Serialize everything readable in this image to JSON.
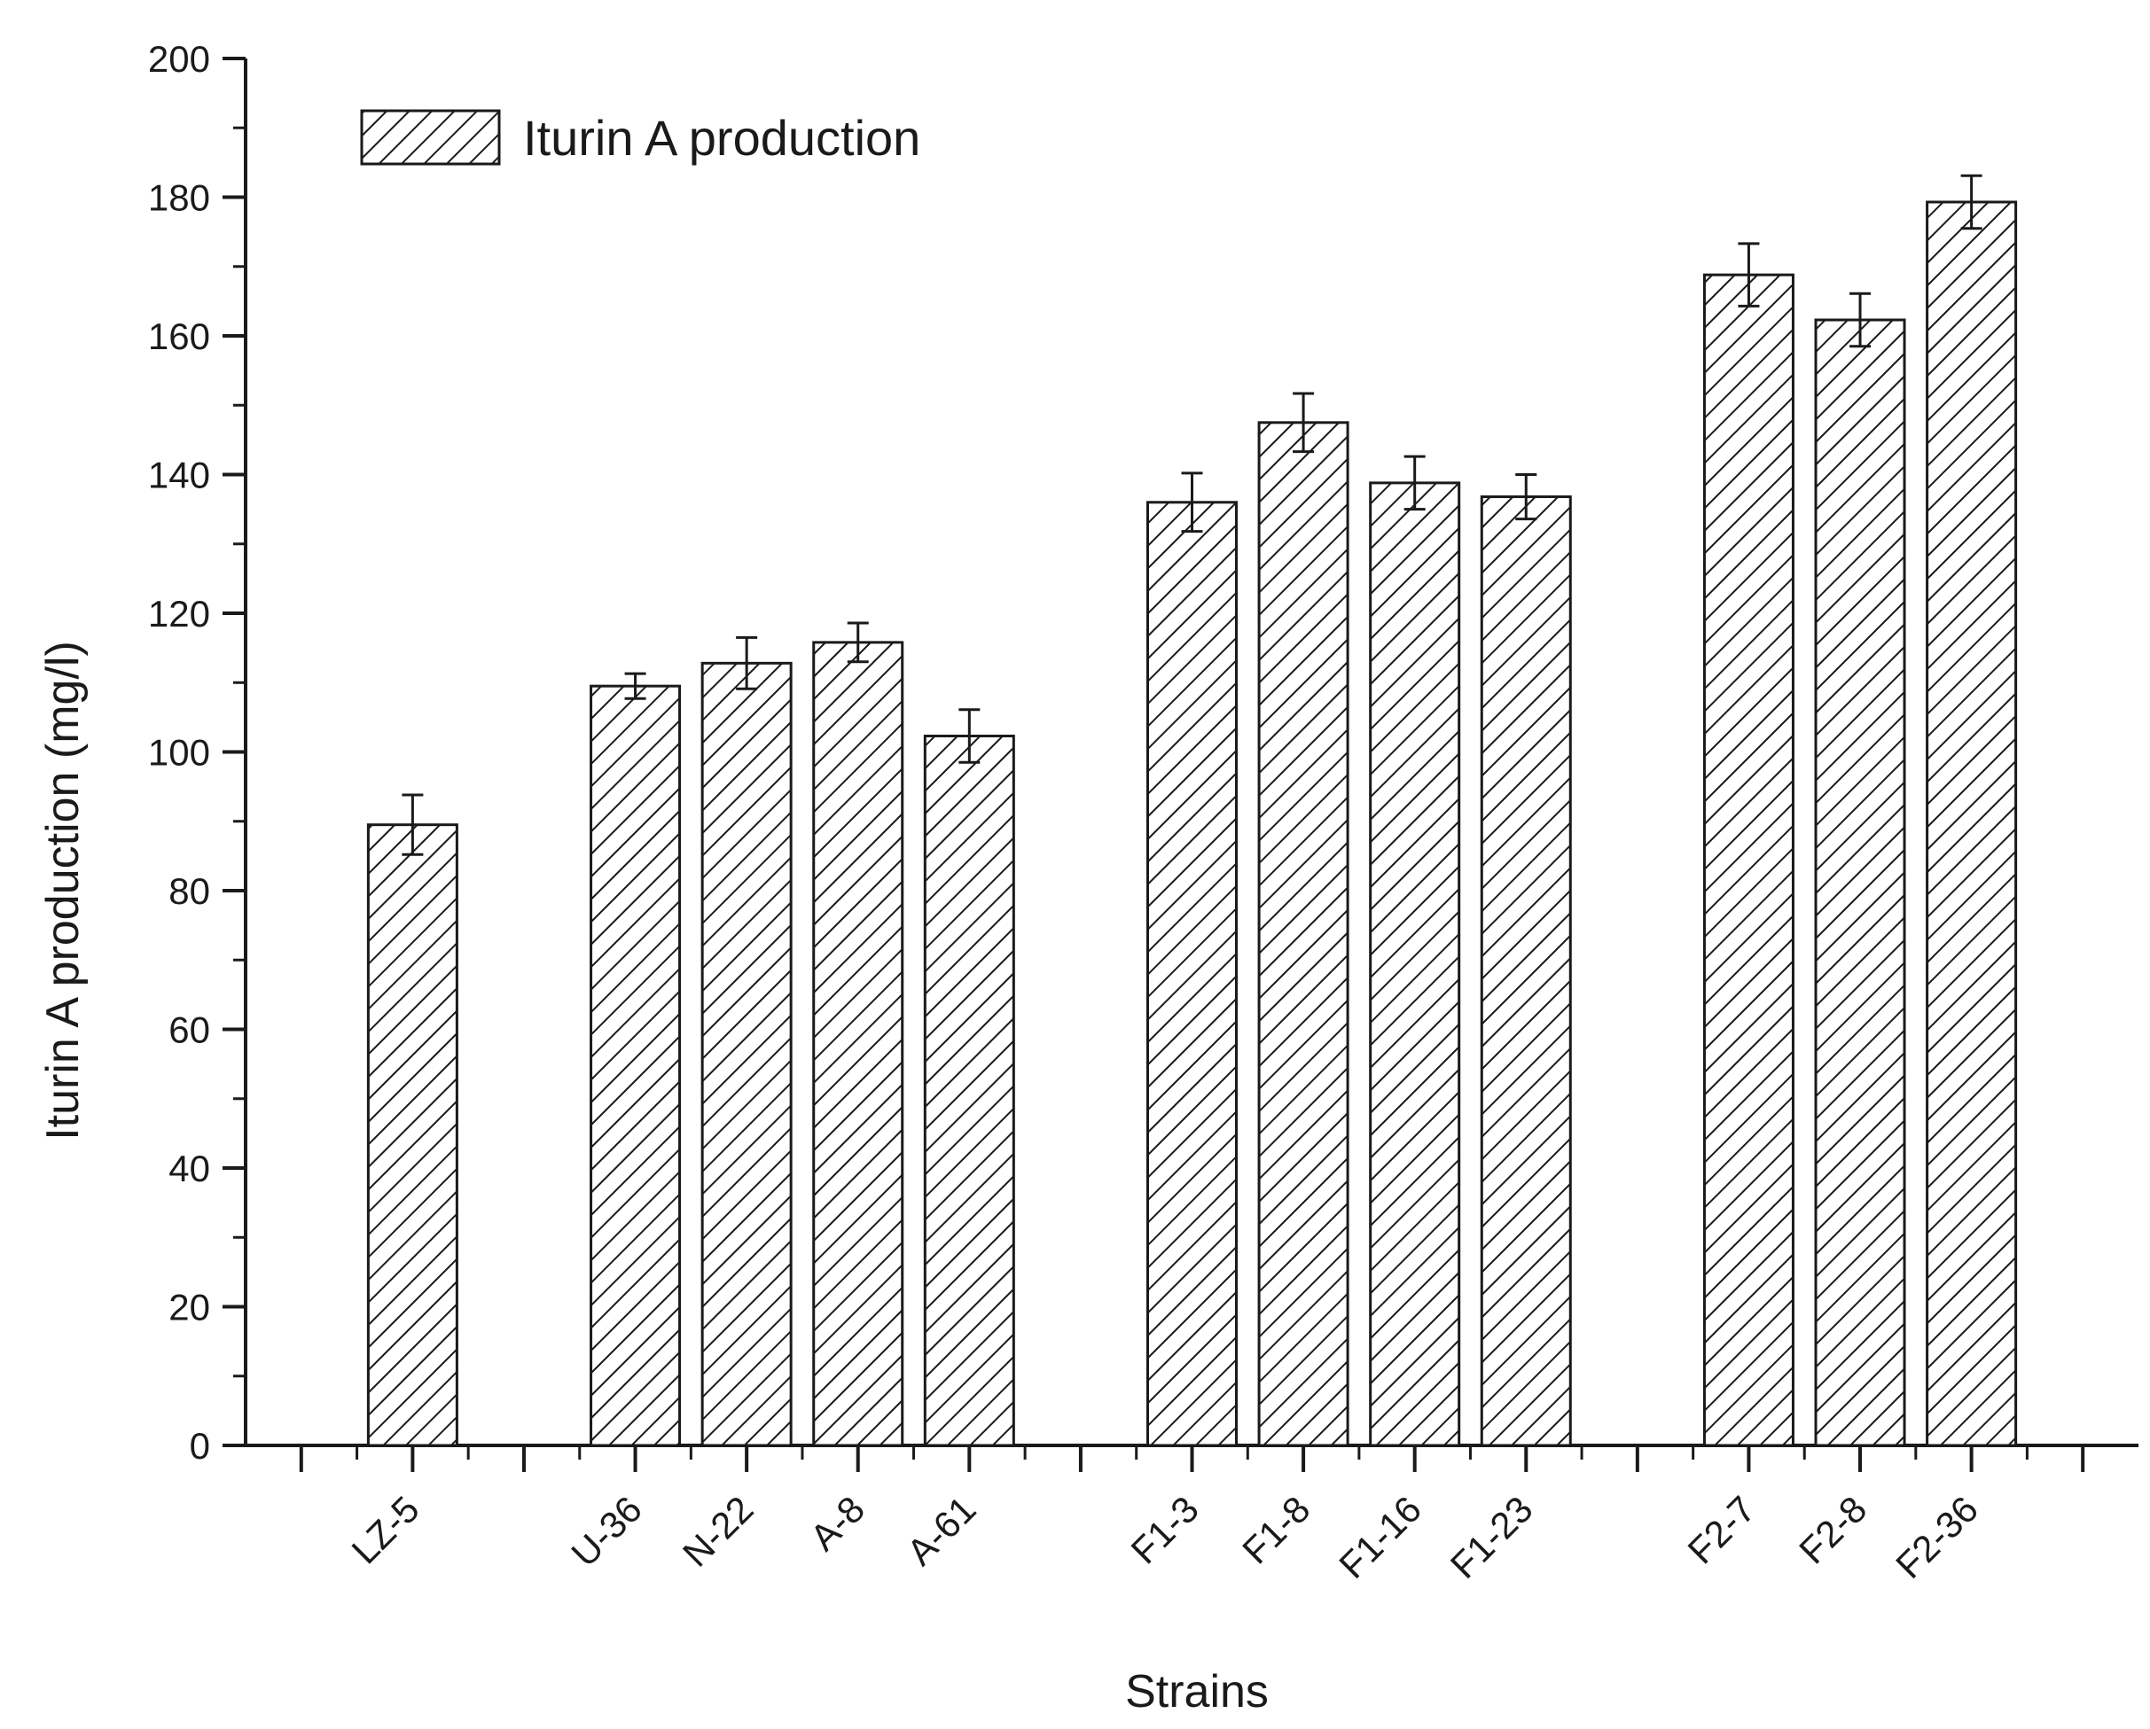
{
  "chart_data": {
    "type": "bar",
    "xlabel": "Strains",
    "ylabel": "Iturin A production (mg/l)",
    "ylim": [
      0,
      200
    ],
    "yticks": [
      0,
      20,
      40,
      60,
      80,
      100,
      120,
      140,
      160,
      180,
      200
    ],
    "legend": {
      "label": "Iturin A production",
      "position": "top-left"
    },
    "grid": false,
    "bar_pattern": "diagonal-hatch",
    "colors": {
      "bar_fill": "#ffffff",
      "hatch": "#1a1a1a",
      "axis": "#1a1a1a"
    },
    "slots": 17,
    "bars": [
      {
        "label": "LZ-5",
        "slot": 1,
        "value": 89.5,
        "error": 4.3
      },
      {
        "label": "U-36",
        "slot": 3,
        "value": 109.5,
        "error": 1.8
      },
      {
        "label": "N-22",
        "slot": 4,
        "value": 112.8,
        "error": 3.7
      },
      {
        "label": "A-8",
        "slot": 5,
        "value": 115.8,
        "error": 2.8
      },
      {
        "label": "A-61",
        "slot": 6,
        "value": 102.3,
        "error": 3.8
      },
      {
        "label": "F1-3",
        "slot": 8,
        "value": 136.0,
        "error": 4.2
      },
      {
        "label": "F1-8",
        "slot": 9,
        "value": 147.5,
        "error": 4.2
      },
      {
        "label": "F1-16",
        "slot": 10,
        "value": 138.8,
        "error": 3.8
      },
      {
        "label": "F1-23",
        "slot": 11,
        "value": 136.8,
        "error": 3.2
      },
      {
        "label": "F2-7",
        "slot": 13,
        "value": 168.8,
        "error": 4.5
      },
      {
        "label": "F2-8",
        "slot": 14,
        "value": 162.3,
        "error": 3.8
      },
      {
        "label": "F2-36",
        "slot": 15,
        "value": 179.3,
        "error": 3.8
      }
    ]
  }
}
